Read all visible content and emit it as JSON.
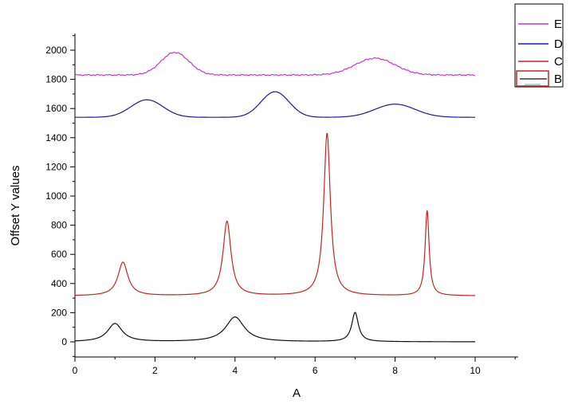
{
  "chart_data": {
    "type": "line",
    "title": "",
    "xlabel": "A",
    "ylabel": "Offset Y values",
    "xlim": [
      0,
      10
    ],
    "ylim": [
      -100,
      2150
    ],
    "x_ticks": [
      0,
      2,
      4,
      6,
      8,
      10
    ],
    "y_ticks": [
      0,
      200,
      400,
      600,
      800,
      1000,
      1200,
      1400,
      1600,
      1800,
      2000
    ],
    "grid": false,
    "legend_position": "top-right",
    "series": [
      {
        "name": "E",
        "color": "#cc33cc",
        "baseline": 1830,
        "peaks": [
          {
            "x": 2.5,
            "height": 155,
            "width": 0.35,
            "shape": "gaussian"
          },
          {
            "x": 7.5,
            "height": 115,
            "width": 0.5,
            "shape": "gaussian"
          }
        ],
        "noise": 4
      },
      {
        "name": "D",
        "color": "#1a1aa0",
        "baseline": 1540,
        "peaks": [
          {
            "x": 1.8,
            "height": 120,
            "width": 0.4,
            "shape": "gaussian"
          },
          {
            "x": 5.0,
            "height": 175,
            "width": 0.35,
            "shape": "gaussian"
          },
          {
            "x": 8.0,
            "height": 90,
            "width": 0.5,
            "shape": "gaussian"
          }
        ],
        "noise": 0
      },
      {
        "name": "C",
        "color": "#cc2222",
        "baseline": 315,
        "peaks": [
          {
            "x": 1.2,
            "height": 230,
            "width": 0.15,
            "shape": "lorentzian"
          },
          {
            "x": 3.8,
            "height": 510,
            "width": 0.12,
            "shape": "lorentzian"
          },
          {
            "x": 6.3,
            "height": 1115,
            "width": 0.1,
            "shape": "lorentzian"
          },
          {
            "x": 8.8,
            "height": 585,
            "width": 0.06,
            "shape": "lorentzian"
          }
        ],
        "noise": 0
      },
      {
        "name": "B",
        "color": "#111111",
        "baseline": 0,
        "peaks": [
          {
            "x": 1.0,
            "height": 125,
            "width": 0.22,
            "shape": "lorentzian"
          },
          {
            "x": 4.0,
            "height": 170,
            "width": 0.28,
            "shape": "lorentzian"
          },
          {
            "x": 7.0,
            "height": 200,
            "width": 0.1,
            "shape": "lorentzian"
          }
        ],
        "noise": 0
      }
    ],
    "legend": [
      {
        "label": "E",
        "color": "#cc33cc",
        "selected": false
      },
      {
        "label": "D",
        "color": "#1a1aa0",
        "selected": false
      },
      {
        "label": "C",
        "color": "#cc2222",
        "selected": false
      },
      {
        "label": "B",
        "color": "#111111",
        "selected": true,
        "selection_color": "#cc2222"
      }
    ]
  }
}
